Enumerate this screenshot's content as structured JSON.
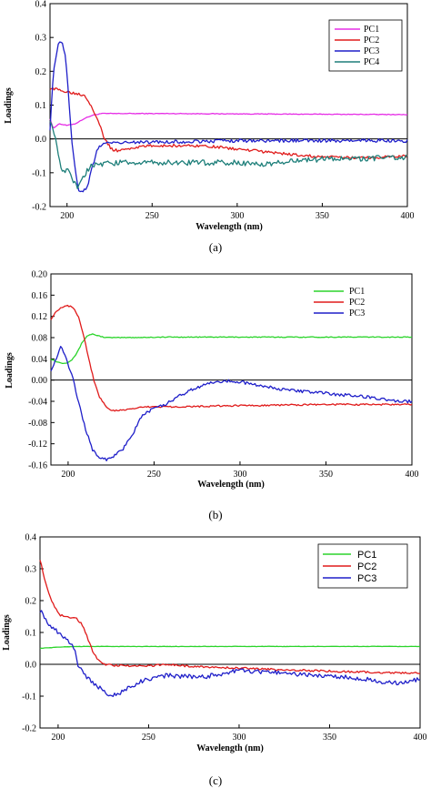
{
  "chart_data": [
    {
      "type": "line",
      "panel": "(a)",
      "xlabel": "Wavelength (nm)",
      "ylabel": "Loadings",
      "xlim": [
        190,
        400
      ],
      "ylim": [
        -0.2,
        0.4
      ],
      "xticks": [
        200,
        250,
        300,
        350,
        400
      ],
      "yticks": [
        -0.2,
        -0.1,
        0.0,
        0.1,
        0.2,
        0.3,
        0.4
      ],
      "ytick_labels": [
        "-0.2",
        "-0.1",
        "0.0",
        "0.1",
        "0.2",
        "0.3",
        "0.4"
      ],
      "zero_line": true,
      "grid": false,
      "legend_position": "top-right",
      "series": [
        {
          "name": "PC1",
          "color": "#e62ee6",
          "noise": 0.001,
          "x": [
            190,
            192,
            195,
            200,
            205,
            210,
            215,
            220,
            230,
            260,
            300,
            350,
            400
          ],
          "y": [
            0.06,
            0.03,
            0.045,
            0.04,
            0.045,
            0.06,
            0.07,
            0.075,
            0.075,
            0.075,
            0.074,
            0.073,
            0.072
          ]
        },
        {
          "name": "PC2",
          "color": "#e01b1b",
          "noise": 0.004,
          "x": [
            190,
            195,
            200,
            205,
            210,
            213,
            218,
            222,
            226,
            230,
            240,
            250,
            260,
            280,
            300,
            320,
            340,
            360,
            380,
            400
          ],
          "y": [
            0.15,
            0.145,
            0.14,
            0.135,
            0.13,
            0.11,
            0.06,
            0.0,
            -0.03,
            -0.035,
            -0.025,
            -0.02,
            -0.02,
            -0.02,
            -0.03,
            -0.04,
            -0.05,
            -0.055,
            -0.055,
            -0.05
          ]
        },
        {
          "name": "PC3",
          "color": "#1f1fc9",
          "noise": 0.005,
          "x": [
            190,
            192,
            195,
            197,
            199,
            201,
            203,
            205,
            207,
            209,
            212,
            215,
            218,
            222,
            230,
            250,
            300,
            350,
            400
          ],
          "y": [
            0.03,
            0.2,
            0.28,
            0.29,
            0.25,
            0.12,
            -0.02,
            -0.1,
            -0.15,
            -0.16,
            -0.14,
            -0.08,
            -0.03,
            -0.01,
            -0.01,
            -0.01,
            -0.005,
            -0.005,
            -0.005
          ]
        },
        {
          "name": "PC4",
          "color": "#1e7f7a",
          "noise": 0.008,
          "x": [
            190,
            192,
            194,
            196,
            198,
            200,
            203,
            206,
            209,
            212,
            215,
            220,
            230,
            250,
            300,
            320,
            330,
            350,
            400
          ],
          "y": [
            0.06,
            0.02,
            -0.02,
            -0.08,
            -0.1,
            -0.09,
            -0.12,
            -0.14,
            -0.12,
            -0.09,
            -0.08,
            -0.075,
            -0.07,
            -0.07,
            -0.07,
            -0.075,
            -0.065,
            -0.06,
            -0.055
          ]
        }
      ]
    },
    {
      "type": "line",
      "panel": "(b)",
      "xlabel": "Wavelength (nm)",
      "ylabel": "Loadings",
      "xlim": [
        190,
        400
      ],
      "ylim": [
        -0.16,
        0.2
      ],
      "xticks": [
        200,
        250,
        300,
        350,
        400
      ],
      "yticks": [
        -0.16,
        -0.12,
        -0.08,
        -0.04,
        0.0,
        0.04,
        0.08,
        0.12,
        0.16,
        0.2
      ],
      "ytick_labels": [
        "-0.16",
        "-0.12",
        "-0.08",
        "-0.04",
        "0.00",
        "0.04",
        "0.08",
        "0.12",
        "0.16",
        "0.20"
      ],
      "zero_line": true,
      "grid": false,
      "legend_position": "top-right",
      "series": [
        {
          "name": "PC1",
          "color": "#2bd42b",
          "noise": 0.0008,
          "x": [
            190,
            193,
            196,
            199,
            202,
            205,
            208,
            211,
            214,
            218,
            222,
            230,
            260,
            300,
            350,
            400
          ],
          "y": [
            0.04,
            0.035,
            0.032,
            0.032,
            0.038,
            0.05,
            0.07,
            0.083,
            0.087,
            0.083,
            0.08,
            0.08,
            0.081,
            0.081,
            0.081,
            0.081
          ]
        },
        {
          "name": "PC2",
          "color": "#e01b1b",
          "noise": 0.0015,
          "x": [
            190,
            192,
            195,
            198,
            200,
            203,
            206,
            209,
            212,
            215,
            218,
            222,
            226,
            232,
            240,
            250,
            270,
            300,
            350,
            400
          ],
          "y": [
            0.115,
            0.125,
            0.135,
            0.14,
            0.14,
            0.137,
            0.12,
            0.085,
            0.04,
            0.0,
            -0.03,
            -0.05,
            -0.058,
            -0.057,
            -0.052,
            -0.05,
            -0.05,
            -0.048,
            -0.046,
            -0.046
          ]
        },
        {
          "name": "PC3",
          "color": "#1f1fc9",
          "noise": 0.003,
          "x": [
            190,
            192,
            194,
            196,
            198,
            200,
            203,
            206,
            210,
            214,
            218,
            222,
            226,
            232,
            238,
            242,
            246,
            250,
            260,
            270,
            280,
            290,
            300,
            310,
            320,
            330,
            340,
            350,
            360,
            370,
            380,
            390,
            400
          ],
          "y": [
            0.02,
            0.03,
            0.05,
            0.065,
            0.05,
            0.03,
            0.0,
            -0.04,
            -0.09,
            -0.13,
            -0.145,
            -0.15,
            -0.145,
            -0.13,
            -0.1,
            -0.07,
            -0.06,
            -0.055,
            -0.04,
            -0.02,
            -0.008,
            -0.002,
            -0.003,
            -0.01,
            -0.015,
            -0.02,
            -0.022,
            -0.025,
            -0.028,
            -0.03,
            -0.035,
            -0.04,
            -0.04
          ]
        }
      ]
    },
    {
      "type": "line",
      "panel": "(c)",
      "xlabel": "Wavelength (nm)",
      "ylabel": "Loadings",
      "xlim": [
        190,
        400
      ],
      "ylim": [
        -0.2,
        0.4
      ],
      "xticks": [
        200,
        250,
        300,
        350,
        400
      ],
      "yticks": [
        -0.2,
        -0.1,
        0.0,
        0.1,
        0.2,
        0.3,
        0.4
      ],
      "ytick_labels": [
        "-0.2",
        "-0.1",
        "0.0",
        "0.1",
        "0.2",
        "0.3",
        "0.4"
      ],
      "zero_line": true,
      "grid": false,
      "legend_position": "top-right",
      "series": [
        {
          "name": "PC1",
          "color": "#2bd42b",
          "noise": 0.0005,
          "x": [
            190,
            195,
            200,
            210,
            220,
            250,
            300,
            350,
            400
          ],
          "y": [
            0.05,
            0.052,
            0.054,
            0.056,
            0.056,
            0.056,
            0.056,
            0.056,
            0.056
          ]
        },
        {
          "name": "PC2",
          "color": "#e01b1b",
          "noise": 0.003,
          "x": [
            190,
            192,
            195,
            198,
            201,
            205,
            210,
            214,
            217,
            220,
            223,
            226,
            230,
            240,
            250,
            260,
            270,
            280,
            300,
            320,
            340,
            360,
            380,
            400
          ],
          "y": [
            0.33,
            0.28,
            0.22,
            0.18,
            0.155,
            0.15,
            0.145,
            0.12,
            0.07,
            0.03,
            0.01,
            0.0,
            -0.003,
            -0.005,
            -0.005,
            0.0,
            -0.005,
            -0.008,
            -0.012,
            -0.016,
            -0.02,
            -0.023,
            -0.026,
            -0.028
          ]
        },
        {
          "name": "PC3",
          "color": "#1f1fc9",
          "noise": 0.007,
          "x": [
            190,
            193,
            196,
            200,
            204,
            208,
            210,
            211,
            213,
            216,
            220,
            224,
            228,
            232,
            236,
            240,
            245,
            250,
            260,
            280,
            300,
            320,
            340,
            360,
            380,
            390,
            400
          ],
          "y": [
            0.17,
            0.14,
            0.12,
            0.1,
            0.085,
            0.06,
            0.03,
            0.0,
            -0.02,
            -0.04,
            -0.06,
            -0.08,
            -0.095,
            -0.095,
            -0.085,
            -0.07,
            -0.055,
            -0.045,
            -0.035,
            -0.04,
            -0.02,
            -0.025,
            -0.035,
            -0.04,
            -0.055,
            -0.06,
            -0.045
          ]
        }
      ]
    }
  ],
  "panel_labels": [
    "(a)",
    "(b)",
    "(c)"
  ]
}
